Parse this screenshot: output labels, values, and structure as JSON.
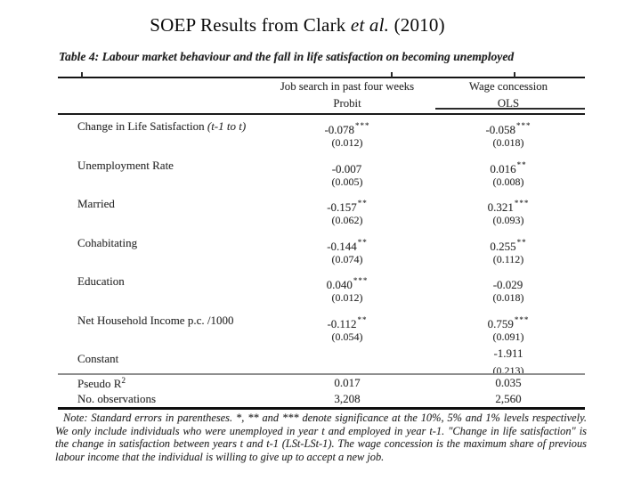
{
  "title": {
    "prefix": "SOEP Results from Clark ",
    "emphasis": "et al.",
    "suffix": " (2010)"
  },
  "table": {
    "caption": "Table 4: Labour market behaviour and the fall in life satisfaction on becoming unemployed",
    "column_groups": [
      {
        "title": "Job search in past four weeks",
        "estimator": "Probit"
      },
      {
        "title": "Wage concession",
        "estimator": "OLS"
      }
    ],
    "rows": [
      {
        "label": "Change in Life Satisfaction ",
        "label_italic": "(t-1 to t)",
        "probit": "-0.078",
        "probit_stars": "***",
        "probit_se": "(0.012)",
        "ols": "-0.058",
        "ols_stars": "***",
        "ols_se": "(0.018)"
      },
      {
        "label": "Unemployment Rate",
        "label_italic": "",
        "probit": "-0.007",
        "probit_stars": "",
        "probit_se": "(0.005)",
        "ols": "0.016",
        "ols_stars": "**",
        "ols_se": "(0.008)"
      },
      {
        "label": "Married",
        "label_italic": "",
        "probit": "-0.157",
        "probit_stars": "**",
        "probit_se": "(0.062)",
        "ols": "0.321",
        "ols_stars": "***",
        "ols_se": "(0.093)"
      },
      {
        "label": "Cohabitating",
        "label_italic": "",
        "probit": "-0.144",
        "probit_stars": "**",
        "probit_se": "(0.074)",
        "ols": "0.255",
        "ols_stars": "**",
        "ols_se": "(0.112)"
      },
      {
        "label": "Education",
        "label_italic": "",
        "probit": "0.040",
        "probit_stars": "***",
        "probit_se": "(0.012)",
        "ols": "-0.029",
        "ols_stars": "",
        "ols_se": "(0.018)"
      },
      {
        "label": "Net Household Income p.c. /1000",
        "label_italic": "",
        "probit": "-0.112",
        "probit_stars": "**",
        "probit_se": "(0.054)",
        "ols": "0.759",
        "ols_stars": "***",
        "ols_se": "(0.091)"
      },
      {
        "label": "Constant",
        "label_italic": "",
        "probit": "",
        "probit_stars": "",
        "probit_se": "",
        "ols": "-1.911",
        "ols_stars": "",
        "ols_se": "(0.213)"
      }
    ],
    "stats": [
      {
        "label": "Pseudo R",
        "label_sup": "2",
        "probit": "0.017",
        "ols": "0.035"
      },
      {
        "label": "No. observations",
        "label_sup": "",
        "probit": "3,208",
        "ols": "2,560"
      }
    ]
  },
  "note": {
    "text": "Note: Standard errors in parentheses. *, ** and *** denote significance at the 10%, 5% and 1% levels respectively. We only include individuals who were unemployed in year t and employed in year t-1. \"Change in life satisfaction\" is the change in satisfaction between years t and t-1 (LSt-LSt-1). The wage concession is the maximum share of previous labour income that the individual is willing to give up to accept a new job."
  }
}
